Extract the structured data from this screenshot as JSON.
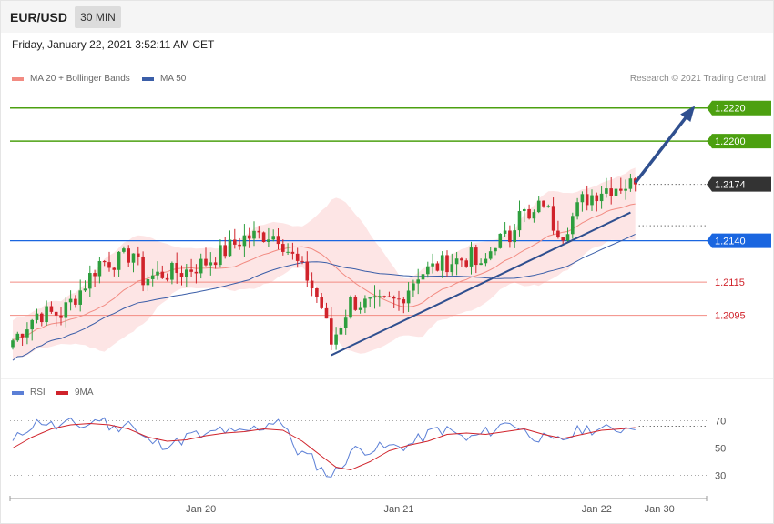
{
  "header": {
    "symbol": "EUR/USD",
    "timeframe": "30 MIN",
    "datetime": "Friday, January 22, 2021 3:52:11 AM CET",
    "copyright": "Research © 2021 Trading Central"
  },
  "colors": {
    "up_candle": "#2e9e3e",
    "down_candle": "#d0232b",
    "bollinger_fill": "#fde2e2",
    "ma20": "#f28b82",
    "ma50": "#3b5ea8",
    "trendline": "#2f4f8f",
    "resistance": "#4ca010",
    "current_price_bg": "#333333",
    "pivot": "#1a66e0",
    "support": "#f28b82",
    "support_label": "#d0232b",
    "rsi": "#5b7fd6",
    "rsi_ma": "#d0232b"
  },
  "legend": {
    "ma20": "MA 20 + Bollinger Bands",
    "ma50": "MA 50",
    "rsi": "RSI",
    "rsi_ma": "9MA"
  },
  "chart_data": [
    {
      "type": "candlestick",
      "y_range": [
        1.2063,
        1.2233
      ],
      "levels": [
        {
          "value": 1.222,
          "label": "1.2220",
          "role": "resistance"
        },
        {
          "value": 1.22,
          "label": "1.2200",
          "role": "resistance"
        },
        {
          "value": 1.2174,
          "label": "1.2174",
          "role": "current"
        },
        {
          "value": 1.214,
          "label": "1.2140",
          "role": "pivot"
        },
        {
          "value": 1.2115,
          "label": "1.2115",
          "role": "support"
        },
        {
          "value": 1.2095,
          "label": "1.2095",
          "role": "support"
        }
      ],
      "bar_count": 130,
      "trend_start": {
        "bar": 66,
        "price": 1.2071
      },
      "trend_end": {
        "bar": 128,
        "price": 1.2157
      },
      "arrow_start": {
        "bar": 129,
        "price": 1.2175
      },
      "arrow_end": {
        "bar": 141,
        "price": 1.222
      },
      "dotted_level": 1.2149,
      "keypoints": [
        [
          0,
          1.208
        ],
        [
          5,
          1.2096
        ],
        [
          10,
          1.2096
        ],
        [
          14,
          1.211
        ],
        [
          18,
          1.2127
        ],
        [
          22,
          1.2128
        ],
        [
          25,
          1.2133
        ],
        [
          27,
          1.2117
        ],
        [
          31,
          1.212
        ],
        [
          36,
          1.2122
        ],
        [
          40,
          1.2127
        ],
        [
          44,
          1.2134
        ],
        [
          48,
          1.2142
        ],
        [
          53,
          1.2144
        ],
        [
          55,
          1.2143
        ],
        [
          58,
          1.213
        ],
        [
          61,
          1.2118
        ],
        [
          64,
          1.21
        ],
        [
          66,
          1.2078
        ],
        [
          70,
          1.2103
        ],
        [
          75,
          1.2101
        ],
        [
          80,
          1.2104
        ],
        [
          84,
          1.212
        ],
        [
          90,
          1.2127
        ],
        [
          95,
          1.213
        ],
        [
          97,
          1.2122
        ],
        [
          100,
          1.214
        ],
        [
          103,
          1.2142
        ],
        [
          105,
          1.2162
        ],
        [
          107,
          1.2151
        ],
        [
          110,
          1.2164
        ],
        [
          112,
          1.215
        ],
        [
          114,
          1.2145
        ],
        [
          118,
          1.2164
        ],
        [
          122,
          1.2171
        ],
        [
          125,
          1.2173
        ],
        [
          128,
          1.2174
        ]
      ]
    },
    {
      "type": "line",
      "name": "RSI",
      "y_ticks": [
        30,
        50,
        70
      ],
      "y_range": [
        15,
        85
      ],
      "x_ticks": [
        {
          "label": "Jan 20",
          "bar": 39
        },
        {
          "label": "Jan 21",
          "bar": 80
        },
        {
          "label": "Jan 22",
          "bar": 121
        },
        {
          "label": "Jan 30",
          "bar": 134
        }
      ],
      "dotted_level": 66,
      "rsi_keypoints": [
        [
          0,
          54
        ],
        [
          3,
          65
        ],
        [
          6,
          70
        ],
        [
          9,
          65
        ],
        [
          12,
          68
        ],
        [
          15,
          66
        ],
        [
          18,
          72
        ],
        [
          21,
          64
        ],
        [
          24,
          70
        ],
        [
          26,
          60
        ],
        [
          28,
          55
        ],
        [
          31,
          53
        ],
        [
          34,
          54
        ],
        [
          37,
          60
        ],
        [
          40,
          58
        ],
        [
          43,
          64
        ],
        [
          46,
          60
        ],
        [
          49,
          63
        ],
        [
          52,
          66
        ],
        [
          55,
          72
        ],
        [
          57,
          60
        ],
        [
          59,
          48
        ],
        [
          62,
          42
        ],
        [
          64,
          34
        ],
        [
          66,
          30
        ],
        [
          68,
          36
        ],
        [
          70,
          48
        ],
        [
          73,
          49
        ],
        [
          76,
          50
        ],
        [
          79,
          51
        ],
        [
          82,
          52
        ],
        [
          85,
          58
        ],
        [
          88,
          64
        ],
        [
          91,
          62
        ],
        [
          94,
          56
        ],
        [
          97,
          60
        ],
        [
          100,
          64
        ],
        [
          103,
          70
        ],
        [
          106,
          62
        ],
        [
          109,
          58
        ],
        [
          112,
          54
        ],
        [
          115,
          58
        ],
        [
          118,
          64
        ],
        [
          121,
          64
        ],
        [
          124,
          63
        ],
        [
          127,
          65
        ],
        [
          129,
          67
        ]
      ],
      "ma_keypoints": [
        [
          0,
          50
        ],
        [
          4,
          58
        ],
        [
          8,
          64
        ],
        [
          12,
          67
        ],
        [
          16,
          68
        ],
        [
          20,
          67
        ],
        [
          24,
          64
        ],
        [
          28,
          58
        ],
        [
          32,
          55
        ],
        [
          36,
          56
        ],
        [
          40,
          59
        ],
        [
          44,
          61
        ],
        [
          48,
          62
        ],
        [
          52,
          64
        ],
        [
          56,
          63
        ],
        [
          60,
          55
        ],
        [
          64,
          44
        ],
        [
          67,
          36
        ],
        [
          70,
          34
        ],
        [
          74,
          40
        ],
        [
          78,
          48
        ],
        [
          82,
          52
        ],
        [
          86,
          55
        ],
        [
          90,
          60
        ],
        [
          94,
          61
        ],
        [
          98,
          60
        ],
        [
          102,
          62
        ],
        [
          106,
          64
        ],
        [
          110,
          60
        ],
        [
          114,
          57
        ],
        [
          118,
          60
        ],
        [
          122,
          63
        ],
        [
          126,
          64
        ],
        [
          129,
          65
        ]
      ]
    }
  ]
}
